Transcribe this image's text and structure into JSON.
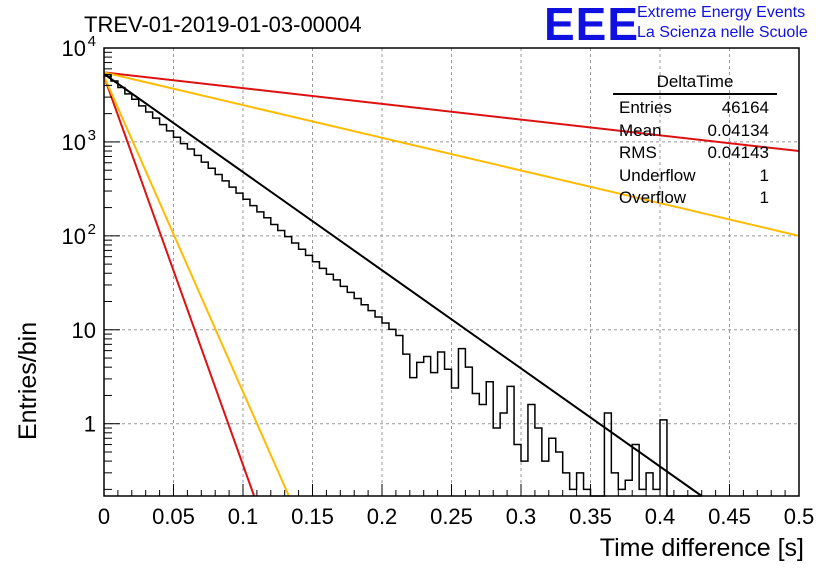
{
  "header": {
    "run_title": "TREV-01-2019-01-03-00004",
    "logo_text": "EEE",
    "logo_line1": "Extreme Energy Events",
    "logo_line2": "La Scienza nelle Scuole"
  },
  "stats_box": {
    "title": "DeltaTime",
    "rows": [
      {
        "label": "Entries",
        "value": "46164"
      },
      {
        "label": "Mean",
        "value": "0.04134"
      },
      {
        "label": "RMS",
        "value": "0.04143"
      },
      {
        "label": "Underflow",
        "value": "1"
      },
      {
        "label": "Overflow",
        "value": "1"
      }
    ]
  },
  "chart_data": {
    "type": "line",
    "title": "TREV-01-2019-01-03-00004",
    "xlabel": "Time difference [s]",
    "ylabel": "Entries/bin",
    "xlim": [
      0,
      0.5
    ],
    "ylim": [
      0.17,
      10000
    ],
    "yscale": "log",
    "grid": true,
    "legend": "top-right",
    "x_ticks": [
      "0",
      "0.05",
      "0.1",
      "0.15",
      "0.2",
      "0.25",
      "0.3",
      "0.35",
      "0.4",
      "0.45",
      "0.5"
    ],
    "y_ticks": [
      {
        "value": 1,
        "label": "1"
      },
      {
        "value": 10,
        "label": "10"
      },
      {
        "value": 100,
        "label": "10",
        "exp": "2"
      },
      {
        "value": 1000,
        "label": "10",
        "exp": "3"
      },
      {
        "value": 10000,
        "label": "10",
        "exp": "4"
      }
    ],
    "histogram": {
      "color": "#000000",
      "bin_width": 0.005,
      "x_start": 0,
      "values": [
        5200,
        4450,
        3800,
        3250,
        2850,
        2420,
        2080,
        1790,
        1530,
        1310,
        1120,
        960,
        840,
        720,
        610,
        525,
        450,
        385,
        330,
        285,
        245,
        210,
        180,
        156,
        132,
        114,
        98,
        84,
        72,
        62,
        53,
        45,
        39,
        34,
        29,
        25,
        21.5,
        18.5,
        16,
        13.7,
        11.8,
        10.1,
        8.7,
        5.5,
        3.1,
        4.5,
        5.2,
        3.5,
        5.8,
        3.8,
        2.4,
        6.3,
        4.0,
        2.1,
        1.6,
        2.8,
        0.9,
        1.3,
        2.5,
        0.6,
        0.4,
        1.6,
        0.9,
        0.4,
        0.7,
        0.5,
        0.3,
        0.2,
        0.3,
        0.2,
        0.15,
        0.12,
        1.3,
        0.3,
        0.2,
        0.25,
        0.6,
        0.2,
        0.3,
        0.2,
        1.1,
        0.15,
        0.1,
        0.1,
        0.1,
        0.1
      ]
    },
    "series": [
      {
        "color": "#000000",
        "points": [
          [
            0,
            5300
          ],
          [
            0.43,
            0.17
          ]
        ]
      },
      {
        "color": "#dd1111",
        "points": [
          [
            0,
            5500
          ],
          [
            0.5,
            800
          ]
        ]
      },
      {
        "color": "#ffbb00",
        "points": [
          [
            0,
            5500
          ],
          [
            0.5,
            100
          ]
        ]
      },
      {
        "color": "#dd1111",
        "points": [
          [
            0,
            5000
          ],
          [
            0.108,
            0.12
          ]
        ]
      },
      {
        "color": "#ffbb00",
        "points": [
          [
            0,
            5000
          ],
          [
            0.133,
            0.17
          ]
        ]
      }
    ]
  }
}
